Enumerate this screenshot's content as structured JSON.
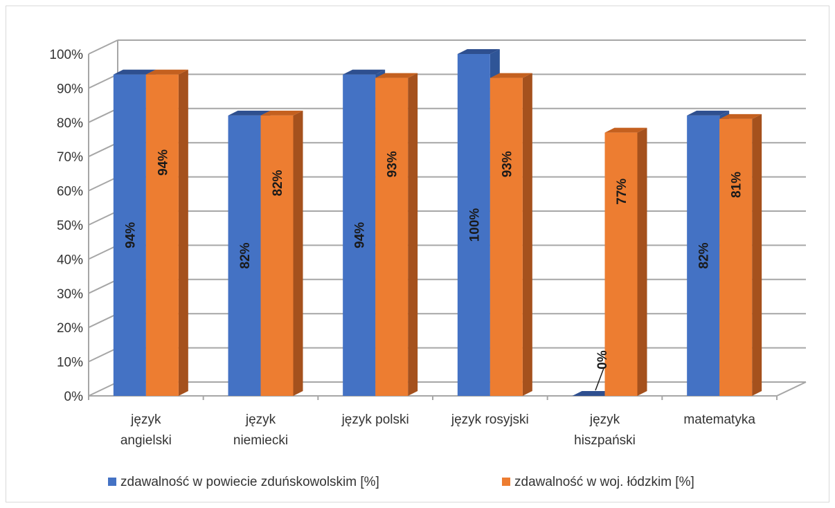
{
  "chart_data": {
    "type": "bar",
    "style": "3d-clustered-column",
    "categories": [
      [
        "język",
        "angielski"
      ],
      [
        "język",
        "niemiecki"
      ],
      [
        "język polski"
      ],
      [
        "język rosyjski"
      ],
      [
        "język",
        "hiszpański"
      ],
      [
        "matematyka"
      ]
    ],
    "series": [
      {
        "name": "zdawalność  w powiecie zduńskowolskim [%]",
        "values": [
          94,
          82,
          94,
          100,
          0,
          82
        ],
        "labels": [
          "94%",
          "82%",
          "94%",
          "100%",
          "0%",
          "82%"
        ],
        "color": "#4472c4",
        "side_color": "#2f5597",
        "top_color": "#2e4f8f"
      },
      {
        "name": "zdawalność w woj. łódzkim [%]",
        "values": [
          94,
          82,
          93,
          93,
          77,
          81
        ],
        "labels": [
          "94%",
          "82%",
          "93%",
          "93%",
          "77%",
          "81%"
        ],
        "color": "#ed7d31",
        "side_color": "#a5511d",
        "top_color": "#c4601f"
      }
    ],
    "ylim": [
      0,
      100
    ],
    "yticks": [
      "0%",
      "10%",
      "20%",
      "30%",
      "40%",
      "50%",
      "60%",
      "70%",
      "80%",
      "90%",
      "100%"
    ],
    "grid": true,
    "legend_position": "bottom",
    "title": "",
    "xlabel": "",
    "ylabel": ""
  }
}
